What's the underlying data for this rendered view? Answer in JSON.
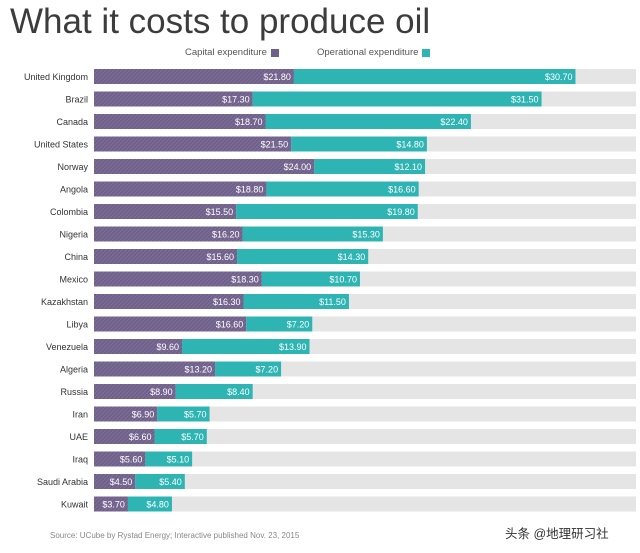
{
  "title": "What it costs to produce oil",
  "legend": {
    "capital": "Capital expenditure",
    "operational": "Operational expenditure"
  },
  "source": "Source: UCube by Rystad Energy; Interactive published Nov. 23, 2015",
  "watermark": "头条 @地理研习社",
  "colors": {
    "capital": "#6f6089",
    "operational": "#2fb4b4",
    "track": "#e5e5e5"
  },
  "chart_data": {
    "type": "bar",
    "orientation": "horizontal",
    "stacked": true,
    "title": "What it costs to produce oil",
    "xlim": [
      0,
      59.1
    ],
    "categories": [
      "United Kingdom",
      "Brazil",
      "Canada",
      "United States",
      "Norway",
      "Angola",
      "Colombia",
      "Nigeria",
      "China",
      "Mexico",
      "Kazakhstan",
      "Libya",
      "Venezuela",
      "Algeria",
      "Russia",
      "Iran",
      "UAE",
      "Iraq",
      "Saudi Arabia",
      "Kuwait"
    ],
    "series": [
      {
        "name": "Capital expenditure",
        "values": [
          21.8,
          17.3,
          18.7,
          21.5,
          24.0,
          18.8,
          15.5,
          16.2,
          15.6,
          18.3,
          16.3,
          16.6,
          9.6,
          13.2,
          8.9,
          6.9,
          6.6,
          5.6,
          4.5,
          3.7
        ],
        "labels": [
          "$21.80",
          "$17.30",
          "$18.70",
          "$21.50",
          "$24.00",
          "$18.80",
          "$15.50",
          "$16.20",
          "$15.60",
          "$18.30",
          "$16.30",
          "$16.60",
          "$9.60",
          "$13.20",
          "$8.90",
          "$6.90",
          "$6.60",
          "$5.60",
          "$4.50",
          "$3.70"
        ]
      },
      {
        "name": "Operational expenditure",
        "values": [
          30.7,
          31.5,
          22.4,
          14.8,
          12.1,
          16.6,
          19.8,
          15.3,
          14.3,
          10.7,
          11.5,
          7.2,
          13.9,
          7.2,
          8.4,
          5.7,
          5.7,
          5.1,
          5.4,
          4.8
        ],
        "labels": [
          "$30.70",
          "$31.50",
          "$22.40",
          "$14.80",
          "$12.10",
          "$16.60",
          "$19.80",
          "$15.30",
          "$14.30",
          "$10.70",
          "$11.50",
          "$7.20",
          "$13.90",
          "$7.20",
          "$8.40",
          "$5.70",
          "$5.70",
          "$5.10",
          "$5.40",
          "$4.80"
        ]
      }
    ],
    "source": "Source: UCube by Rystad Energy; Interactive published Nov. 23, 2015"
  }
}
